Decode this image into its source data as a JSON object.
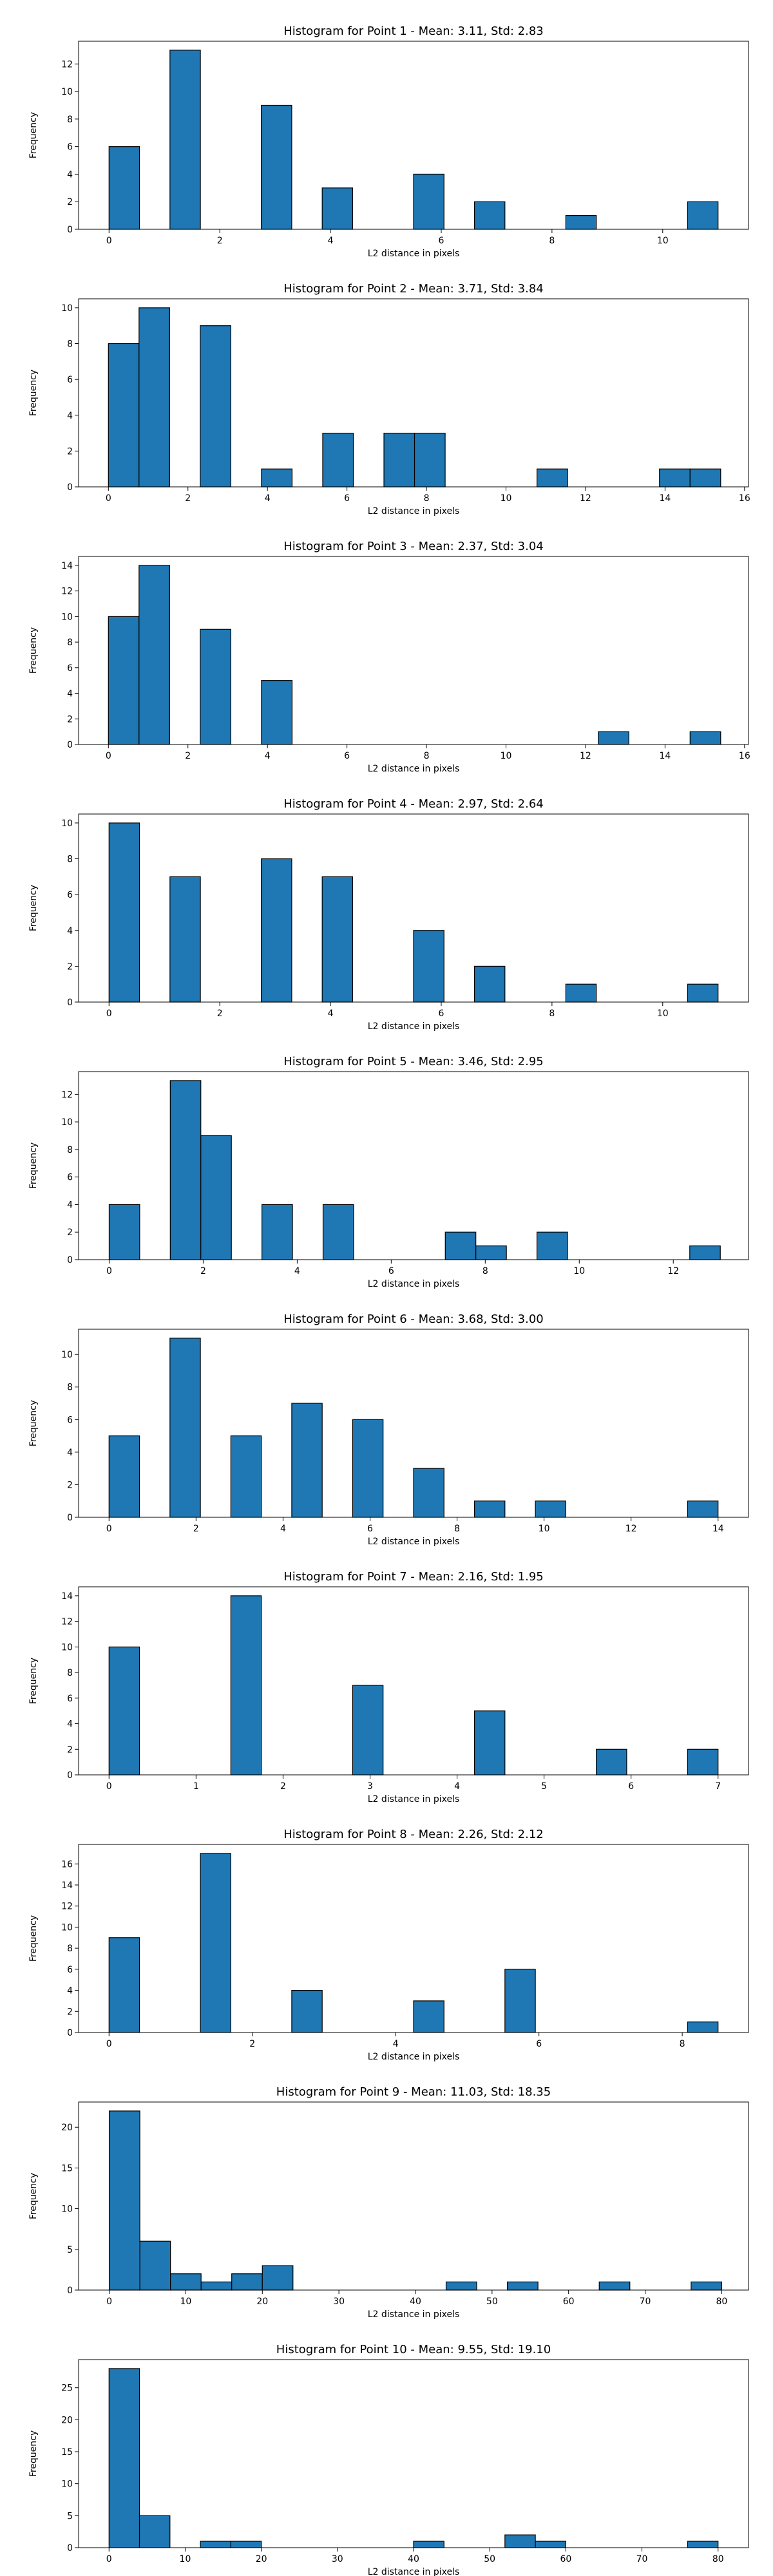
{
  "chart_data": [
    {
      "type": "bar",
      "title": "Histogram for Point 1 - Mean: 3.11, Std: 2.83",
      "xlabel": "L2 distance in pixels",
      "ylabel": "Frequency",
      "xlim": [
        -0.55,
        11.55
      ],
      "ylim": [
        0,
        13.65
      ],
      "xticks": [
        0,
        2,
        4,
        6,
        8,
        10
      ],
      "yticks": [
        0,
        2,
        4,
        6,
        8,
        10,
        12
      ],
      "bin_edges": [
        0,
        0.55,
        1.1,
        1.65,
        2.2,
        2.75,
        3.3,
        3.85,
        4.4,
        4.95,
        5.5,
        6.05,
        6.6,
        7.15,
        7.7,
        8.25,
        8.8,
        9.35,
        9.9,
        10.45,
        11.0
      ],
      "values": [
        6,
        0,
        13,
        0,
        0,
        9,
        0,
        3,
        0,
        0,
        4,
        0,
        2,
        0,
        0,
        1,
        0,
        0,
        0,
        2
      ],
      "bar_color": "#1f77b4",
      "edge_color": "#000000",
      "grid": false
    },
    {
      "type": "bar",
      "title": "Histogram for Point 2 - Mean: 3.71, Std: 3.84",
      "xlabel": "L2 distance in pixels",
      "ylabel": "Frequency",
      "xlim": [
        -0.75,
        16.1
      ],
      "ylim": [
        0,
        10.5
      ],
      "xticks": [
        0,
        2,
        4,
        6,
        8,
        10,
        12,
        14,
        16
      ],
      "yticks": [
        0,
        2,
        4,
        6,
        8,
        10
      ],
      "bin_edges": [
        0,
        0.77,
        1.54,
        2.31,
        3.08,
        3.85,
        4.62,
        5.39,
        6.16,
        6.93,
        7.7,
        8.47,
        9.24,
        10.01,
        10.78,
        11.55,
        12.32,
        13.09,
        13.86,
        14.63,
        15.4
      ],
      "values": [
        8,
        10,
        0,
        9,
        0,
        1,
        0,
        3,
        0,
        3,
        3,
        0,
        0,
        0,
        1,
        0,
        0,
        0,
        1,
        1
      ],
      "bar_color": "#1f77b4",
      "edge_color": "#000000",
      "grid": false
    },
    {
      "type": "bar",
      "title": "Histogram for Point 3 - Mean: 2.37, Std: 3.04",
      "xlabel": "L2 distance in pixels",
      "ylabel": "Frequency",
      "xlim": [
        -0.75,
        16.1
      ],
      "ylim": [
        0,
        14.7
      ],
      "xticks": [
        0,
        2,
        4,
        6,
        8,
        10,
        12,
        14,
        16
      ],
      "yticks": [
        0,
        2,
        4,
        6,
        8,
        10,
        12,
        14
      ],
      "bin_edges": [
        0,
        0.77,
        1.54,
        2.31,
        3.08,
        3.85,
        4.62,
        5.39,
        6.16,
        6.93,
        7.7,
        8.47,
        9.24,
        10.01,
        10.78,
        11.55,
        12.32,
        13.09,
        13.86,
        14.63,
        15.4
      ],
      "values": [
        10,
        14,
        0,
        9,
        0,
        5,
        0,
        0,
        0,
        0,
        0,
        0,
        0,
        0,
        0,
        0,
        1,
        0,
        0,
        1
      ],
      "bar_color": "#1f77b4",
      "edge_color": "#000000",
      "grid": false
    },
    {
      "type": "bar",
      "title": "Histogram for Point 4 - Mean: 2.97, Std: 2.64",
      "xlabel": "L2 distance in pixels",
      "ylabel": "Frequency",
      "xlim": [
        -0.55,
        11.55
      ],
      "ylim": [
        0,
        10.5
      ],
      "xticks": [
        0,
        2,
        4,
        6,
        8,
        10
      ],
      "yticks": [
        0,
        2,
        4,
        6,
        8,
        10
      ],
      "bin_edges": [
        0,
        0.55,
        1.1,
        1.65,
        2.2,
        2.75,
        3.3,
        3.85,
        4.4,
        4.95,
        5.5,
        6.05,
        6.6,
        7.15,
        7.7,
        8.25,
        8.8,
        9.35,
        9.9,
        10.45,
        11.0
      ],
      "values": [
        10,
        0,
        7,
        0,
        0,
        8,
        0,
        7,
        0,
        0,
        4,
        0,
        2,
        0,
        0,
        1,
        0,
        0,
        0,
        1
      ],
      "bar_color": "#1f77b4",
      "edge_color": "#000000",
      "grid": false
    },
    {
      "type": "bar",
      "title": "Histogram for Point 5 - Mean: 3.46, Std: 2.95",
      "xlabel": "L2 distance in pixels",
      "ylabel": "Frequency",
      "xlim": [
        -0.65,
        13.6
      ],
      "ylim": [
        0,
        13.65
      ],
      "xticks": [
        0,
        2,
        4,
        6,
        8,
        10,
        12
      ],
      "yticks": [
        0,
        2,
        4,
        6,
        8,
        10,
        12
      ],
      "bin_edges": [
        0,
        0.65,
        1.3,
        1.95,
        2.6,
        3.25,
        3.9,
        4.55,
        5.2,
        5.85,
        6.5,
        7.15,
        7.8,
        8.45,
        9.1,
        9.75,
        10.4,
        11.05,
        11.7,
        12.35,
        13.0
      ],
      "values": [
        4,
        0,
        13,
        9,
        0,
        4,
        0,
        4,
        0,
        0,
        0,
        2,
        1,
        0,
        2,
        0,
        0,
        0,
        0,
        1
      ],
      "bar_color": "#1f77b4",
      "edge_color": "#000000",
      "grid": false
    },
    {
      "type": "bar",
      "title": "Histogram for Point 6 - Mean: 3.68, Std: 3.00",
      "xlabel": "L2 distance in pixels",
      "ylabel": "Frequency",
      "xlim": [
        -0.7,
        14.7
      ],
      "ylim": [
        0,
        11.55
      ],
      "xticks": [
        0,
        2,
        4,
        6,
        8,
        10,
        12,
        14
      ],
      "yticks": [
        0,
        2,
        4,
        6,
        8,
        10
      ],
      "bin_edges": [
        0,
        0.7,
        1.4,
        2.1,
        2.8,
        3.5,
        4.2,
        4.9,
        5.6,
        6.3,
        7.0,
        7.7,
        8.4,
        9.1,
        9.8,
        10.5,
        11.2,
        11.9,
        12.6,
        13.3,
        14.0
      ],
      "values": [
        5,
        0,
        11,
        0,
        5,
        0,
        7,
        0,
        6,
        0,
        3,
        0,
        1,
        0,
        1,
        0,
        0,
        0,
        0,
        1
      ],
      "bar_color": "#1f77b4",
      "edge_color": "#000000",
      "grid": false
    },
    {
      "type": "bar",
      "title": "Histogram for Point 7 - Mean: 2.16, Std: 1.95",
      "xlabel": "L2 distance in pixels",
      "ylabel": "Frequency",
      "xlim": [
        -0.35,
        7.35
      ],
      "ylim": [
        0,
        14.7
      ],
      "xticks": [
        0,
        1,
        2,
        3,
        4,
        5,
        6,
        7
      ],
      "yticks": [
        0,
        2,
        4,
        6,
        8,
        10,
        12,
        14
      ],
      "bin_edges": [
        0,
        0.35,
        0.7,
        1.05,
        1.4,
        1.75,
        2.1,
        2.45,
        2.8,
        3.15,
        3.5,
        3.85,
        4.2,
        4.55,
        4.9,
        5.25,
        5.6,
        5.95,
        6.3,
        6.65,
        7.0
      ],
      "values": [
        10,
        0,
        0,
        0,
        14,
        0,
        0,
        0,
        7,
        0,
        0,
        0,
        5,
        0,
        0,
        0,
        2,
        0,
        0,
        2
      ],
      "bar_color": "#1f77b4",
      "edge_color": "#000000",
      "grid": false
    },
    {
      "type": "bar",
      "title": "Histogram for Point 8 - Mean: 2.26, Std: 2.12",
      "xlabel": "L2 distance in pixels",
      "ylabel": "Frequency",
      "xlim": [
        -0.425,
        8.925
      ],
      "ylim": [
        0,
        17.85
      ],
      "xticks": [
        0,
        2,
        4,
        6,
        8
      ],
      "yticks": [
        0,
        2,
        4,
        6,
        8,
        10,
        12,
        14,
        16
      ],
      "bin_edges": [
        0,
        0.425,
        0.85,
        1.275,
        1.7,
        2.125,
        2.55,
        2.975,
        3.4,
        3.825,
        4.25,
        4.675,
        5.1,
        5.525,
        5.95,
        6.375,
        6.8,
        7.225,
        7.65,
        8.075,
        8.5
      ],
      "values": [
        9,
        0,
        0,
        17,
        0,
        0,
        4,
        0,
        0,
        0,
        3,
        0,
        0,
        6,
        0,
        0,
        0,
        0,
        0,
        1
      ],
      "bar_color": "#1f77b4",
      "edge_color": "#000000",
      "grid": false
    },
    {
      "type": "bar",
      "title": "Histogram for Point 9 - Mean: 11.03, Std: 18.35",
      "xlabel": "L2 distance in pixels",
      "ylabel": "Frequency",
      "xlim": [
        -4,
        83.5
      ],
      "ylim": [
        0,
        23.1
      ],
      "xticks": [
        0,
        10,
        20,
        30,
        40,
        50,
        60,
        70,
        80
      ],
      "yticks": [
        0,
        5,
        10,
        15,
        20
      ],
      "bin_edges": [
        0,
        4,
        8,
        12,
        16,
        20,
        24,
        28,
        32,
        36,
        40,
        44,
        48,
        52,
        56,
        60,
        64,
        68,
        72,
        76,
        80
      ],
      "values": [
        22,
        6,
        2,
        1,
        2,
        3,
        0,
        0,
        0,
        0,
        0,
        1,
        0,
        1,
        0,
        0,
        1,
        0,
        0,
        1
      ],
      "bar_color": "#1f77b4",
      "edge_color": "#000000",
      "grid": false
    },
    {
      "type": "bar",
      "title": "Histogram for Point 10 - Mean: 9.55, Std: 19.10",
      "xlabel": "L2 distance in pixels",
      "ylabel": "Frequency",
      "xlim": [
        -4,
        84
      ],
      "ylim": [
        0,
        29.4
      ],
      "xticks": [
        0,
        10,
        20,
        30,
        40,
        50,
        60,
        70,
        80
      ],
      "yticks": [
        0,
        5,
        10,
        15,
        20,
        25
      ],
      "bin_edges": [
        0,
        4,
        8,
        12,
        16,
        20,
        24,
        28,
        32,
        36,
        40,
        44,
        48,
        52,
        56,
        60,
        64,
        68,
        72,
        76,
        80
      ],
      "values": [
        28,
        5,
        0,
        1,
        1,
        0,
        0,
        0,
        0,
        0,
        1,
        0,
        0,
        2,
        1,
        0,
        0,
        0,
        0,
        1
      ],
      "bar_color": "#1f77b4",
      "edge_color": "#000000",
      "grid": false
    }
  ]
}
